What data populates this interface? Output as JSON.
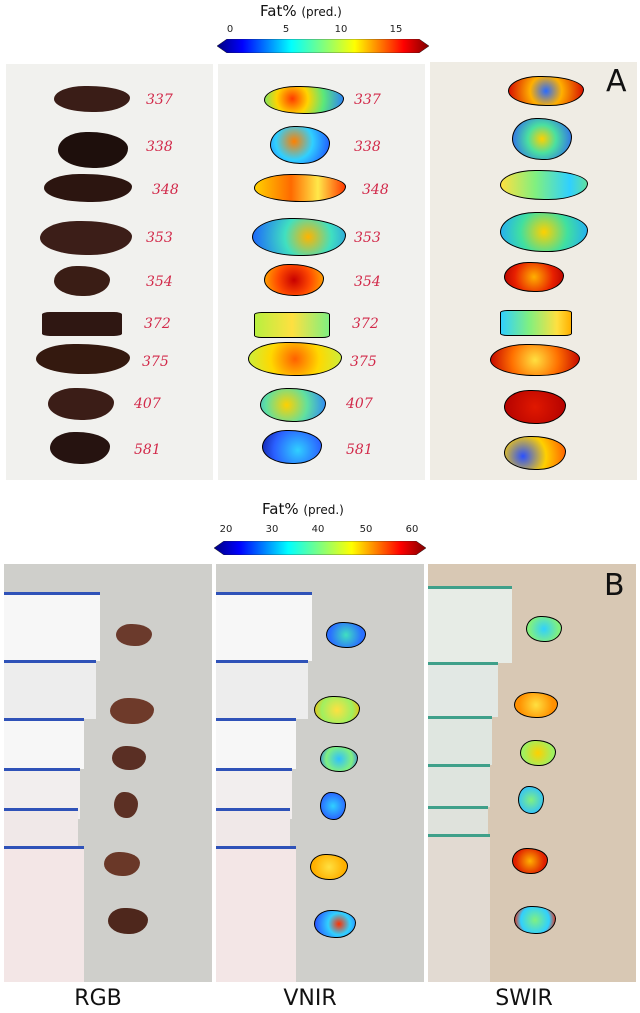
{
  "colorbar_a": {
    "title": "Fat%",
    "subtitle": "(pred.)",
    "ticks": [
      "0",
      "5",
      "10",
      "15"
    ]
  },
  "colorbar_b": {
    "title": "Fat%",
    "subtitle": "(pred.)",
    "ticks": [
      "20",
      "30",
      "40",
      "50",
      "60"
    ]
  },
  "panel_a": {
    "letter": "A",
    "sample_labels": [
      "337",
      "338",
      "348",
      "353",
      "354",
      "372",
      "375",
      "407",
      "581"
    ]
  },
  "panel_b": {
    "letter": "B"
  },
  "column_labels": [
    "RGB",
    "VNIR",
    "SWIR"
  ],
  "colors": {
    "jet_low": "#00007f",
    "jet_high": "#7f0000",
    "label_ink": "#d22a4a",
    "tissue_rgb": "#3a1d17",
    "bag_stripe": "#2f52b8"
  }
}
